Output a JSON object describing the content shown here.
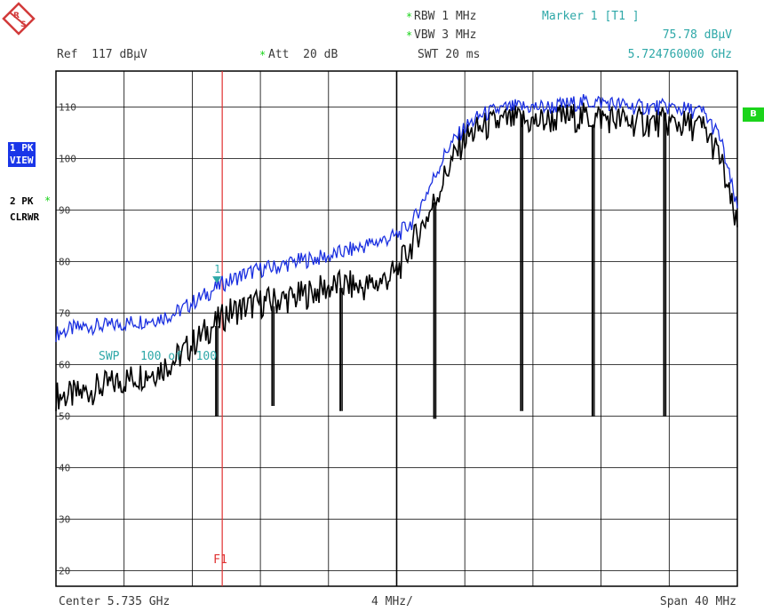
{
  "header": {
    "rbw_label": "RBW 1 MHz",
    "vbw_label": "VBW 3 MHz",
    "swt_label": "SWT 20 ms",
    "ref_label": "Ref  117 dBµV",
    "att_label": "Att  20 dB",
    "star": "*"
  },
  "marker_info": {
    "title": "Marker 1 [T1 ]",
    "level": "75.78 dBµV",
    "freq": "5.724760000 GHz"
  },
  "side": {
    "trace1_line1": "1 PK",
    "trace1_line2": "VIEW",
    "trace2_line1": "2 PK",
    "trace2_line2": "CLRWR",
    "badge_b": "B"
  },
  "footer": {
    "center": "Center 5.735 GHz",
    "per_div": "4 MHz/",
    "span": "Span 40 MHz"
  },
  "overlay": {
    "swp_text": "SWP   100 of  100",
    "marker_number": "1",
    "f1_label": "F1"
  },
  "colors": {
    "trace1": "#1a2fe0",
    "trace2": "#000000",
    "grid": "#000000",
    "marker": "#2ea8a8",
    "f1_line": "#e03030",
    "accent_green": "#1bd41b"
  },
  "chart_data": {
    "type": "line",
    "x_unit": "GHz",
    "xlim": [
      5.715,
      5.755
    ],
    "ylim": [
      17,
      117
    ],
    "y_unit": "dBµV",
    "y_ticks": [
      20,
      30,
      40,
      50,
      60,
      70,
      80,
      90,
      100,
      110
    ],
    "y_tick_labels": [
      "20",
      "30",
      "40",
      "50",
      "60",
      "70",
      "80",
      "90",
      "100",
      "110"
    ],
    "grid": true,
    "f1_freq": 5.72476,
    "marker": {
      "freq": 5.72476,
      "level": 75.78
    },
    "series": [
      {
        "trace": "1 PK VIEW",
        "x": [
          5.715,
          5.716,
          5.717,
          5.718,
          5.719,
          5.72,
          5.721,
          5.722,
          5.723,
          5.724,
          5.7248,
          5.725,
          5.726,
          5.727,
          5.728,
          5.729,
          5.73,
          5.731,
          5.732,
          5.733,
          5.734,
          5.735,
          5.736,
          5.737,
          5.738,
          5.739,
          5.74,
          5.741,
          5.742,
          5.743,
          5.744,
          5.745,
          5.746,
          5.747,
          5.748,
          5.749,
          5.75,
          5.751,
          5.752,
          5.753,
          5.754,
          5.755
        ],
        "values": [
          66,
          67,
          67.5,
          67.5,
          68,
          68.5,
          69,
          70,
          72,
          74,
          75.8,
          76,
          77.5,
          78.5,
          79,
          80,
          80.5,
          81,
          82,
          83,
          84,
          85,
          88,
          95,
          102,
          106,
          108.5,
          109.5,
          110,
          110,
          110,
          110.5,
          111,
          111,
          110.5,
          110,
          110,
          110,
          109.5,
          109,
          104,
          90
        ]
      },
      {
        "trace": "2 PK CLRWR",
        "x": [
          5.715,
          5.716,
          5.717,
          5.718,
          5.719,
          5.72,
          5.721,
          5.722,
          5.723,
          5.724,
          5.7248,
          5.725,
          5.726,
          5.727,
          5.728,
          5.729,
          5.73,
          5.731,
          5.732,
          5.733,
          5.734,
          5.735,
          5.736,
          5.737,
          5.738,
          5.739,
          5.74,
          5.741,
          5.742,
          5.743,
          5.744,
          5.745,
          5.746,
          5.747,
          5.748,
          5.749,
          5.75,
          5.751,
          5.752,
          5.753,
          5.754,
          5.755
        ],
        "values": [
          54,
          54,
          55,
          56,
          57,
          58,
          59,
          61,
          64,
          67,
          69,
          70,
          71,
          72,
          72.5,
          73,
          74,
          75,
          75.5,
          75,
          76,
          78,
          84,
          90,
          98,
          104,
          106,
          107,
          107.5,
          107,
          107.5,
          108,
          108,
          108,
          107.5,
          107,
          107,
          107,
          106.5,
          106,
          100,
          86
        ]
      }
    ],
    "dips": [
      {
        "trace": "2 PK CLRWR",
        "freq": 5.7244,
        "level": 50
      },
      {
        "trace": "2 PK CLRWR",
        "freq": 5.7277,
        "level": 52
      },
      {
        "trace": "2 PK CLRWR",
        "freq": 5.7317,
        "level": 51
      },
      {
        "trace": "2 PK CLRWR",
        "freq": 5.7372,
        "level": 49.5
      },
      {
        "trace": "2 PK CLRWR",
        "freq": 5.7423,
        "level": 51
      },
      {
        "trace": "2 PK CLRWR",
        "freq": 5.7465,
        "level": 50
      },
      {
        "trace": "2 PK CLRWR",
        "freq": 5.7507,
        "level": 50
      }
    ]
  }
}
